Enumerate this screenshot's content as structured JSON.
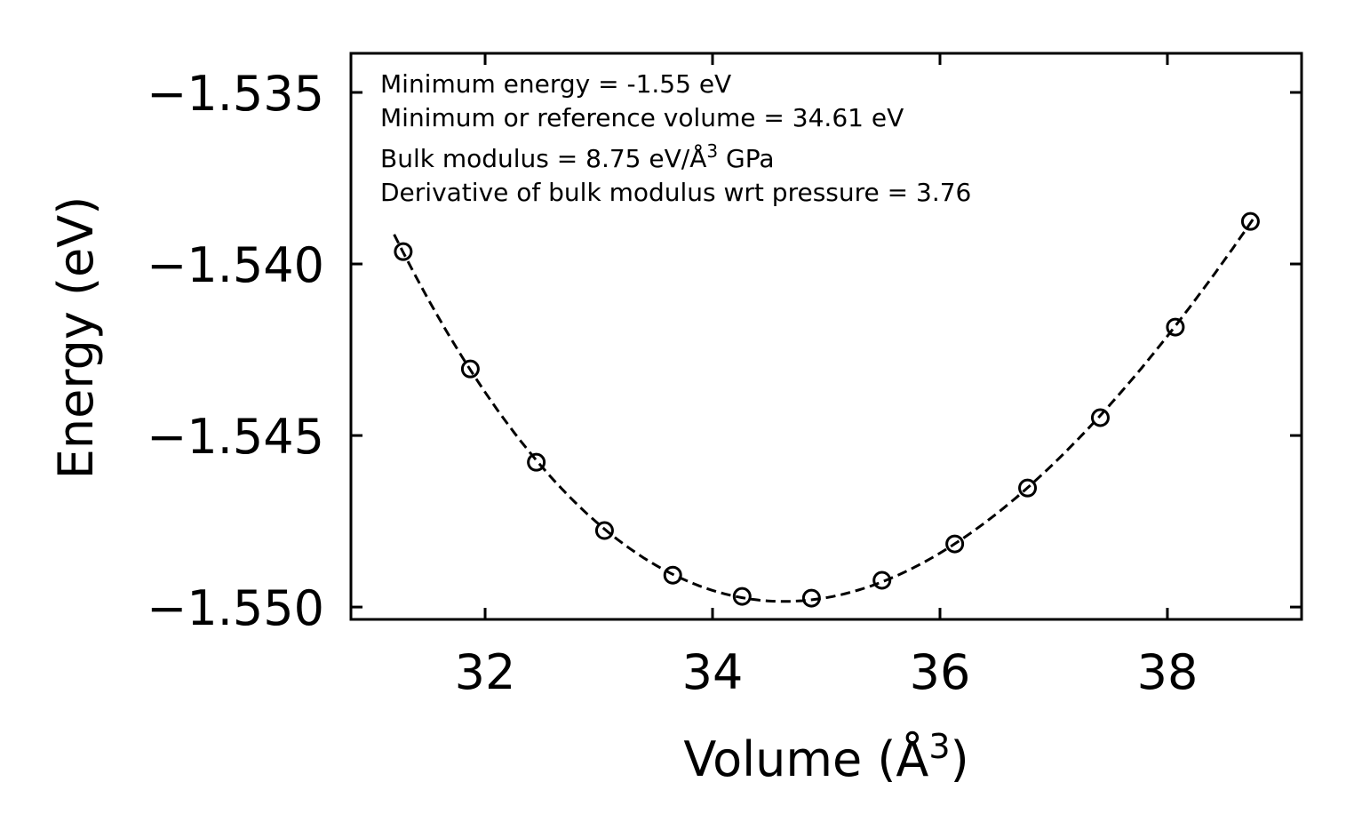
{
  "chart_data": {
    "type": "scatter",
    "title": "",
    "xlabel": "Volume (Å",
    "xlabel_sup": "3",
    "xlabel_end": ")",
    "ylabel": "Energy (eV)",
    "xlim": [
      30.82,
      39.18
    ],
    "ylim": [
      -1.55036,
      -1.53386
    ],
    "xticks": [
      32,
      34,
      36,
      38
    ],
    "xtick_labels": [
      "32",
      "34",
      "36",
      "38"
    ],
    "yticks": [
      -1.535,
      -1.54,
      -1.545,
      -1.55
    ],
    "ytick_labels": [
      "−1.535",
      "−1.540",
      "−1.545",
      "−1.550"
    ],
    "grid": false,
    "series": [
      {
        "name": "data",
        "marker": "open-circle",
        "x": [
          31.28,
          31.87,
          32.45,
          33.05,
          33.65,
          34.26,
          34.87,
          35.49,
          36.13,
          36.77,
          37.41,
          38.07,
          38.73
        ],
        "y": [
          -1.53964,
          -1.54306,
          -1.54578,
          -1.54777,
          -1.54907,
          -1.54969,
          -1.54974,
          -1.54922,
          -1.54816,
          -1.54653,
          -1.54448,
          -1.54184,
          -1.53876
        ]
      },
      {
        "name": "fit",
        "style": "dashed",
        "x_range": [
          31.2,
          38.76
        ]
      }
    ],
    "annotations": {
      "line1": "Minimum energy = -1.55 eV",
      "line2": "Minimum or reference volume = 34.61 eV",
      "line3_pre": "Bulk modulus = 8.75 eV/Å",
      "line3_sup": "3",
      "line3_post": " GPa",
      "line4": "Derivative of bulk modulus wrt pressure = 3.76"
    },
    "colors": {
      "line": "#000000",
      "marker": "#000000"
    }
  }
}
